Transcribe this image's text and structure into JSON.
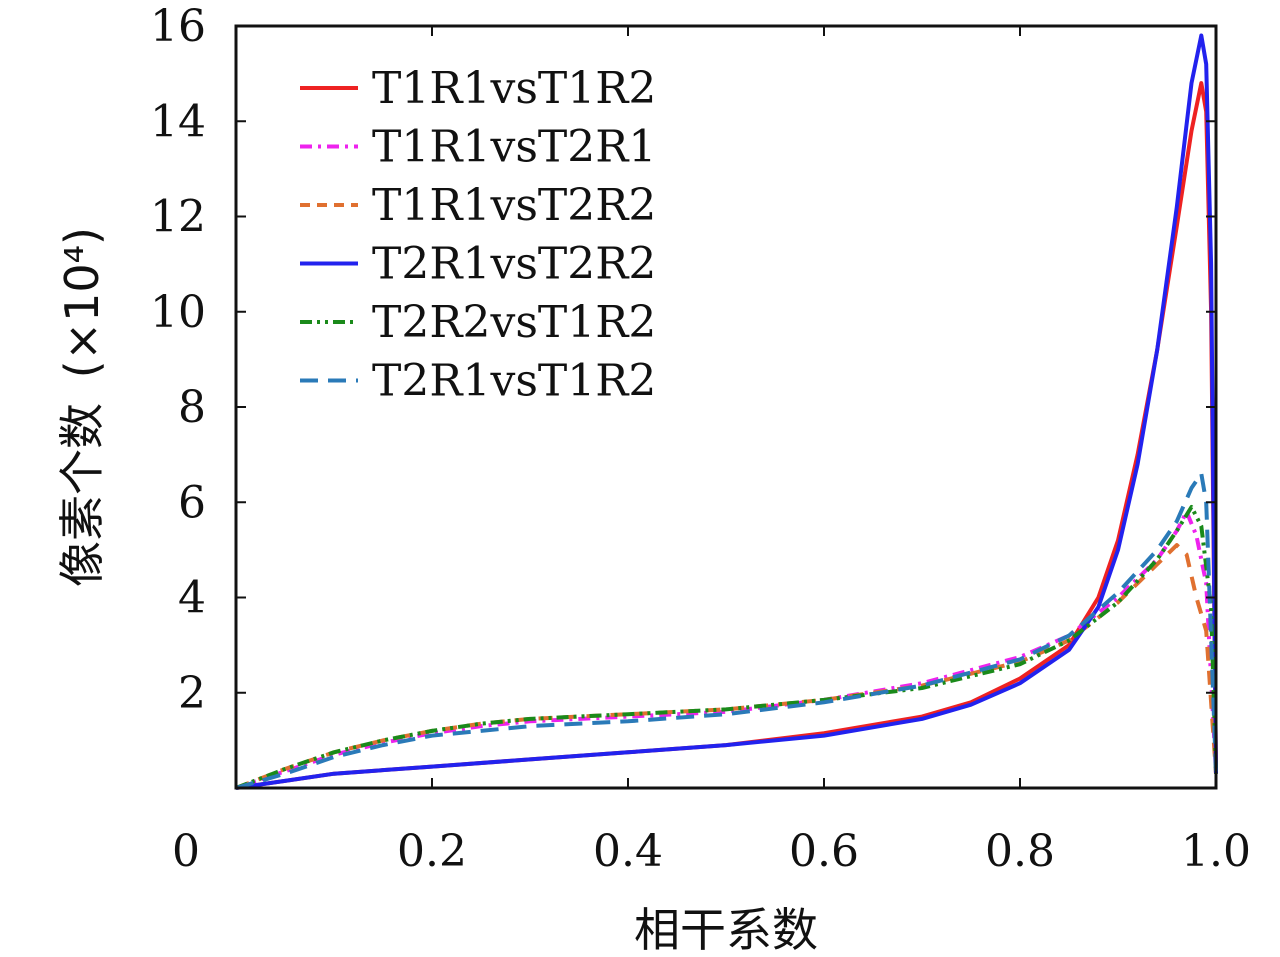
{
  "chart_data": {
    "type": "line",
    "xlabel": "相干系数",
    "ylabel": "像素个数",
    "ylabel_unit": "(×10⁴)",
    "xlim": [
      0,
      1.0
    ],
    "ylim": [
      0,
      16
    ],
    "x_ticks": [
      {
        "value": 0,
        "label": "0"
      },
      {
        "value": 0.2,
        "label": "0.2"
      },
      {
        "value": 0.4,
        "label": "0.4"
      },
      {
        "value": 0.6,
        "label": "0.6"
      },
      {
        "value": 0.8,
        "label": "0.8"
      },
      {
        "value": 1.0,
        "label": "1.0"
      }
    ],
    "y_ticks": [
      {
        "value": 2,
        "label": "2"
      },
      {
        "value": 4,
        "label": "4"
      },
      {
        "value": 6,
        "label": "6"
      },
      {
        "value": 8,
        "label": "8"
      },
      {
        "value": 10,
        "label": "10"
      },
      {
        "value": 12,
        "label": "12"
      },
      {
        "value": 14,
        "label": "14"
      },
      {
        "value": 16,
        "label": "16"
      }
    ],
    "grid": false,
    "legend_position": "top-left",
    "series": [
      {
        "name": "T1R1vsT1R2",
        "color": "#ee2222",
        "dash": "solid",
        "points": [
          [
            0,
            0
          ],
          [
            0.05,
            0.15
          ],
          [
            0.1,
            0.3
          ],
          [
            0.2,
            0.45
          ],
          [
            0.3,
            0.6
          ],
          [
            0.4,
            0.75
          ],
          [
            0.5,
            0.9
          ],
          [
            0.6,
            1.15
          ],
          [
            0.7,
            1.5
          ],
          [
            0.75,
            1.8
          ],
          [
            0.8,
            2.3
          ],
          [
            0.85,
            3.0
          ],
          [
            0.88,
            4.0
          ],
          [
            0.9,
            5.2
          ],
          [
            0.92,
            7.0
          ],
          [
            0.94,
            9.2
          ],
          [
            0.96,
            11.8
          ],
          [
            0.975,
            13.8
          ],
          [
            0.985,
            14.8
          ],
          [
            0.99,
            14.2
          ],
          [
            0.995,
            10.0
          ],
          [
            1.0,
            0.3
          ]
        ]
      },
      {
        "name": "T1R1vsT2R1",
        "color": "#ee22ee",
        "dash": "dashdot",
        "points": [
          [
            0,
            0
          ],
          [
            0.05,
            0.35
          ],
          [
            0.1,
            0.7
          ],
          [
            0.15,
            0.95
          ],
          [
            0.2,
            1.15
          ],
          [
            0.25,
            1.3
          ],
          [
            0.3,
            1.4
          ],
          [
            0.4,
            1.5
          ],
          [
            0.5,
            1.6
          ],
          [
            0.6,
            1.85
          ],
          [
            0.7,
            2.2
          ],
          [
            0.8,
            2.75
          ],
          [
            0.85,
            3.2
          ],
          [
            0.9,
            4.0
          ],
          [
            0.94,
            4.8
          ],
          [
            0.96,
            5.4
          ],
          [
            0.97,
            5.8
          ],
          [
            0.98,
            5.3
          ],
          [
            0.99,
            4.3
          ],
          [
            1.0,
            0.3
          ]
        ]
      },
      {
        "name": "T1R1vsT2R2",
        "color": "#e07030",
        "dash": "dashed",
        "points": [
          [
            0,
            0
          ],
          [
            0.05,
            0.4
          ],
          [
            0.1,
            0.75
          ],
          [
            0.15,
            1.0
          ],
          [
            0.2,
            1.2
          ],
          [
            0.25,
            1.35
          ],
          [
            0.3,
            1.45
          ],
          [
            0.4,
            1.55
          ],
          [
            0.5,
            1.65
          ],
          [
            0.6,
            1.85
          ],
          [
            0.7,
            2.15
          ],
          [
            0.8,
            2.65
          ],
          [
            0.85,
            3.1
          ],
          [
            0.9,
            3.9
          ],
          [
            0.94,
            4.7
          ],
          [
            0.96,
            5.1
          ],
          [
            0.97,
            4.9
          ],
          [
            0.98,
            4.0
          ],
          [
            0.99,
            3.3
          ],
          [
            1.0,
            0.3
          ]
        ]
      },
      {
        "name": "T2R1vsT2R2",
        "color": "#2222ee",
        "dash": "solid",
        "points": [
          [
            0,
            0
          ],
          [
            0.05,
            0.15
          ],
          [
            0.1,
            0.3
          ],
          [
            0.2,
            0.45
          ],
          [
            0.3,
            0.6
          ],
          [
            0.4,
            0.75
          ],
          [
            0.5,
            0.9
          ],
          [
            0.6,
            1.1
          ],
          [
            0.7,
            1.45
          ],
          [
            0.75,
            1.75
          ],
          [
            0.8,
            2.2
          ],
          [
            0.85,
            2.9
          ],
          [
            0.88,
            3.8
          ],
          [
            0.9,
            5.0
          ],
          [
            0.92,
            6.8
          ],
          [
            0.94,
            9.2
          ],
          [
            0.96,
            12.2
          ],
          [
            0.975,
            14.8
          ],
          [
            0.985,
            15.8
          ],
          [
            0.99,
            15.2
          ],
          [
            0.995,
            11.0
          ],
          [
            1.0,
            0.3
          ]
        ]
      },
      {
        "name": "T2R2vsT1R2",
        "color": "#1a8a1a",
        "dash": "dashdotdot",
        "points": [
          [
            0,
            0
          ],
          [
            0.05,
            0.4
          ],
          [
            0.1,
            0.75
          ],
          [
            0.15,
            1.0
          ],
          [
            0.2,
            1.2
          ],
          [
            0.25,
            1.35
          ],
          [
            0.3,
            1.45
          ],
          [
            0.4,
            1.55
          ],
          [
            0.5,
            1.65
          ],
          [
            0.6,
            1.85
          ],
          [
            0.7,
            2.1
          ],
          [
            0.8,
            2.6
          ],
          [
            0.85,
            3.1
          ],
          [
            0.9,
            3.9
          ],
          [
            0.94,
            4.8
          ],
          [
            0.96,
            5.4
          ],
          [
            0.975,
            5.9
          ],
          [
            0.985,
            5.5
          ],
          [
            0.995,
            3.8
          ],
          [
            1.0,
            0.3
          ]
        ]
      },
      {
        "name": "T2R1vsT1R2",
        "color": "#2a7ab8",
        "dash": "longdashed",
        "points": [
          [
            0,
            0
          ],
          [
            0.05,
            0.3
          ],
          [
            0.1,
            0.65
          ],
          [
            0.15,
            0.9
          ],
          [
            0.2,
            1.1
          ],
          [
            0.25,
            1.2
          ],
          [
            0.3,
            1.3
          ],
          [
            0.4,
            1.4
          ],
          [
            0.5,
            1.55
          ],
          [
            0.6,
            1.8
          ],
          [
            0.7,
            2.15
          ],
          [
            0.8,
            2.7
          ],
          [
            0.85,
            3.2
          ],
          [
            0.9,
            4.1
          ],
          [
            0.94,
            5.0
          ],
          [
            0.96,
            5.6
          ],
          [
            0.975,
            6.3
          ],
          [
            0.985,
            6.6
          ],
          [
            0.99,
            6.0
          ],
          [
            1.0,
            0.3
          ]
        ]
      }
    ]
  }
}
